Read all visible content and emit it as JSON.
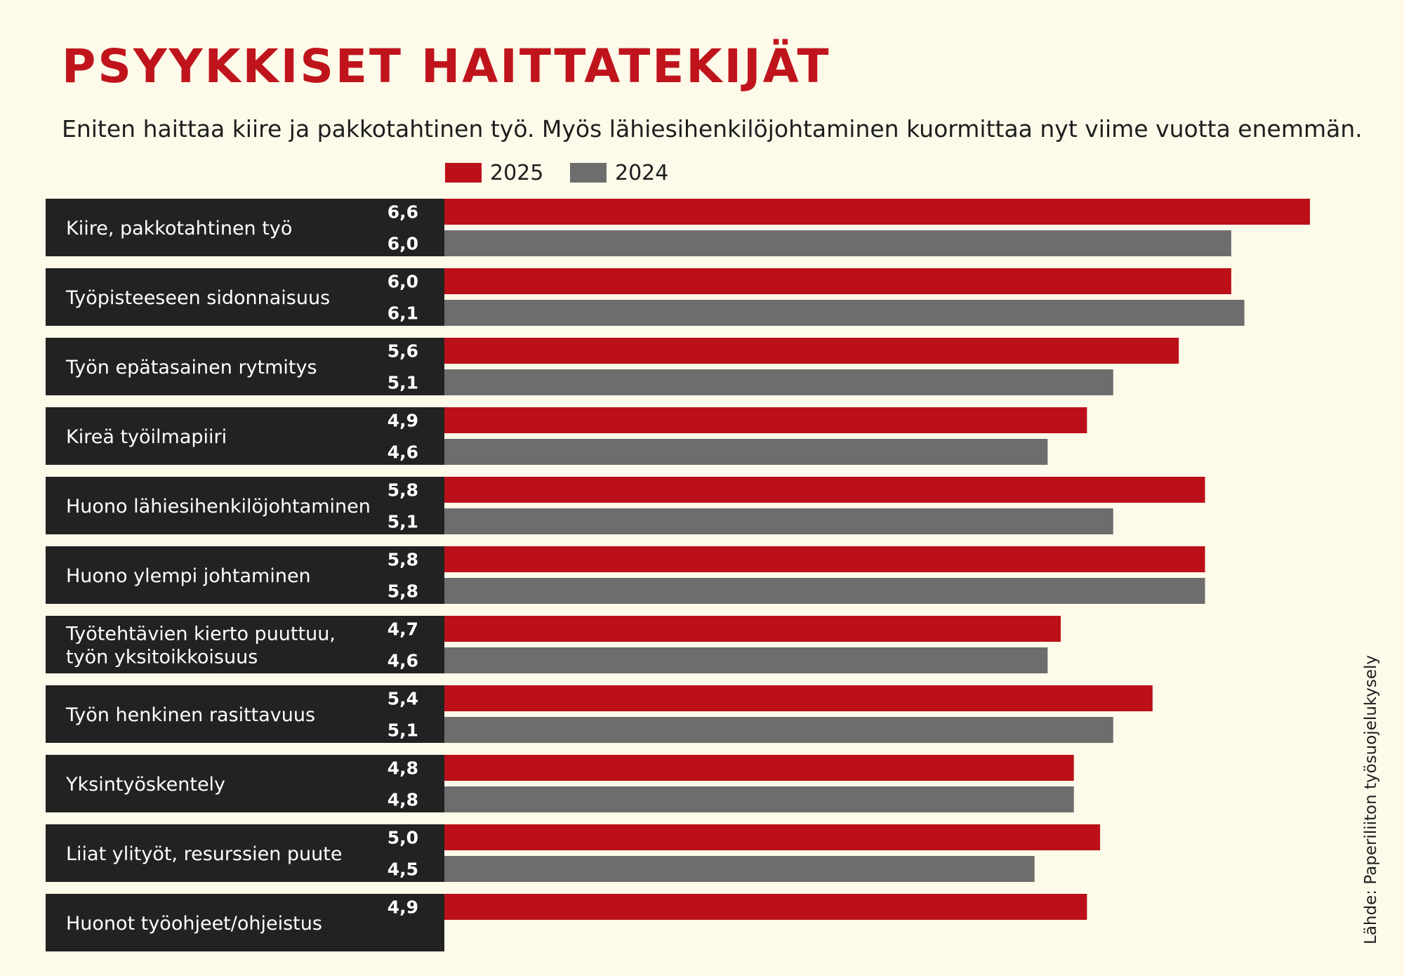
{
  "title": "PSYYKKISET HAITTATEKIJÄT",
  "subtitle": "Eniten haittaa kiire ja pakkotahtinen työ. Myös lähiesihenkilöjohtaminen kuormittaa nyt viime vuotta enemmän.",
  "source": "Lähde: Paperiliiton työsuojelukysely",
  "colors": {
    "series_2025": "#bb1019",
    "series_2024": "#6d6d6d",
    "label_panel": "#222222",
    "background": "#fdfaea"
  },
  "chart_data": {
    "type": "bar",
    "orientation": "horizontal",
    "title": "PSYYKKISET HAITTATEKIJÄT",
    "legend": "top",
    "grid": false,
    "xlim": [
      0,
      6.6
    ],
    "categories": [
      "Kiire, pakkotahtinen työ",
      "Työpisteeseen sidonnaisuus",
      "Työn epätasainen rytmitys",
      "Kireä työilmapiiri",
      "Huono lähiesihenkilöjohtaminen",
      "Huono ylempi johtaminen",
      "Työtehtävien kierto puuttuu,\ntyön yksitoikkoisuus",
      "Työn henkinen rasittavuus",
      "Yksintyöskentely",
      "Liiat ylityöt, resurssien puute",
      "Huonot työohjeet/ohjeistus"
    ],
    "series": [
      {
        "name": "2025",
        "values": [
          6.6,
          6.0,
          5.6,
          4.9,
          5.8,
          5.8,
          4.7,
          5.4,
          4.8,
          5.0,
          4.9
        ],
        "labels": [
          "6,6",
          "6,0",
          "5,6",
          "4,9",
          "5,8",
          "5,8",
          "4,7",
          "5,4",
          "4,8",
          "5,0",
          "4,9"
        ]
      },
      {
        "name": "2024",
        "values": [
          6.0,
          6.1,
          5.1,
          4.6,
          5.1,
          5.8,
          4.6,
          5.1,
          4.8,
          4.5,
          null
        ],
        "labels": [
          "6,0",
          "6,1",
          "5,1",
          "4,6",
          "5,1",
          "5,8",
          "4,6",
          "5,1",
          "4,8",
          "4,5",
          null
        ]
      }
    ]
  }
}
